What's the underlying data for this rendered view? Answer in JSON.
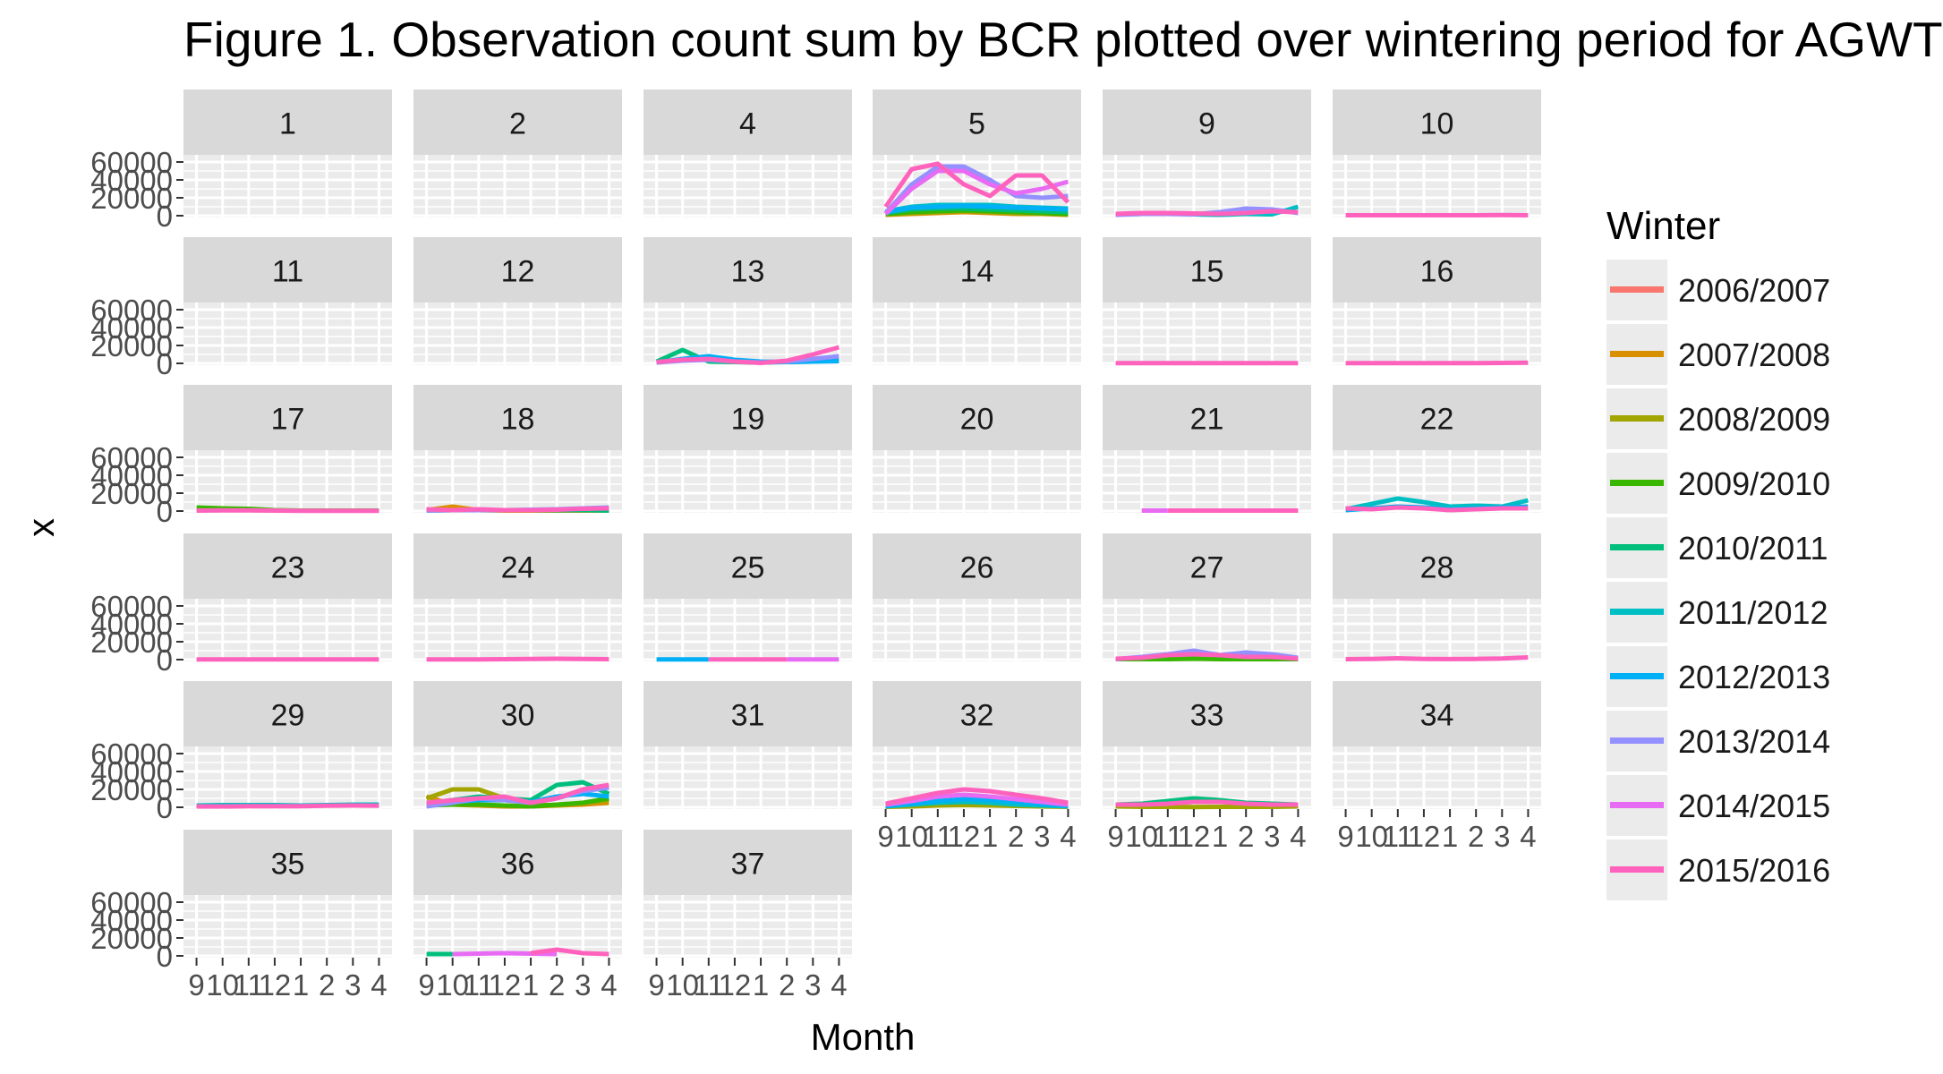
{
  "title": "Figure 1. Observation count sum by BCR plotted over wintering period for AGWT",
  "xlabel": "Month",
  "ylabel": "x",
  "legend": {
    "title": "Winter",
    "items": [
      {
        "label": "2006/2007",
        "color": "#F8766D"
      },
      {
        "label": "2007/2008",
        "color": "#D89000"
      },
      {
        "label": "2008/2009",
        "color": "#A3A500"
      },
      {
        "label": "2009/2010",
        "color": "#39B600"
      },
      {
        "label": "2010/2011",
        "color": "#00BF7D"
      },
      {
        "label": "2011/2012",
        "color": "#00BFC4"
      },
      {
        "label": "2012/2013",
        "color": "#00B0F6"
      },
      {
        "label": "2013/2014",
        "color": "#9590FF"
      },
      {
        "label": "2014/2015",
        "color": "#E76BF3"
      },
      {
        "label": "2015/2016",
        "color": "#FF62BC"
      }
    ]
  },
  "chart_data": {
    "type": "line",
    "facet_by": "BCR",
    "x_categories": [
      "9",
      "10",
      "11",
      "12",
      "1",
      "2",
      "3",
      "4"
    ],
    "y_ticks": [
      0,
      20000,
      40000,
      60000
    ],
    "ylim": [
      -2000,
      68000
    ],
    "legend_position": "right",
    "panels": [
      {
        "label": "1",
        "series": []
      },
      {
        "label": "2",
        "series": []
      },
      {
        "label": "4",
        "series": []
      },
      {
        "label": "5",
        "series": [
          {
            "name": "2007/2008",
            "values": [
              1000,
              2000,
              3000,
              4000,
              3000,
              2000,
              2000,
              1000
            ]
          },
          {
            "name": "2008/2009",
            "values": [
              1500,
              3000,
              4000,
              5000,
              4000,
              3000,
              2500,
              1500
            ]
          },
          {
            "name": "2009/2010",
            "values": [
              2000,
              4000,
              5000,
              6000,
              5000,
              4000,
              3000,
              2000
            ]
          },
          {
            "name": "2010/2011",
            "values": [
              3000,
              7000,
              8000,
              8000,
              7000,
              6000,
              5000,
              4000
            ]
          },
          {
            "name": "2011/2012",
            "values": [
              5000,
              10000,
              12000,
              12000,
              12000,
              10000,
              9000,
              8000
            ]
          },
          {
            "name": "2012/2013",
            "values": [
              4000,
              9000,
              10000,
              11000,
              10000,
              9000,
              8000,
              7000
            ]
          },
          {
            "name": "2013/2014",
            "values": [
              3000,
              35000,
              55000,
              55000,
              40000,
              22000,
              20000,
              22000
            ]
          },
          {
            "name": "2014/2015",
            "values": [
              2000,
              30000,
              50000,
              50000,
              35000,
              25000,
              30000,
              38000
            ]
          },
          {
            "name": "2015/2016",
            "values": [
              10000,
              52000,
              58000,
              35000,
              22000,
              45000,
              45000,
              15000
            ]
          }
        ]
      },
      {
        "label": "9",
        "series": [
          {
            "name": "2011/2012",
            "values": [
              1500,
              2000,
              2500,
              1500,
              1000,
              2000,
              1500,
              10000
            ]
          },
          {
            "name": "2013/2014",
            "values": [
              1000,
              2000,
              2000,
              1500,
              4000,
              8000,
              7000,
              3000
            ]
          },
          {
            "name": "2015/2016",
            "values": [
              2000,
              3000,
              3000,
              2500,
              2000,
              3000,
              5000,
              4000
            ]
          }
        ]
      },
      {
        "label": "10",
        "series": [
          {
            "name": "2015/2016",
            "values": [
              500,
              500,
              500,
              500,
              500,
              500,
              800,
              500
            ]
          }
        ]
      },
      {
        "label": "11",
        "series": []
      },
      {
        "label": "12",
        "series": []
      },
      {
        "label": "13",
        "series": [
          {
            "name": "2010/2011",
            "values": [
              2000,
              15000,
              2000,
              1500,
              1000,
              1500,
              3000,
              4000
            ]
          },
          {
            "name": "2012/2013",
            "values": [
              1000,
              5000,
              8000,
              4000,
              2000,
              1500,
              2000,
              2500
            ]
          },
          {
            "name": "2013/2014",
            "values": [
              1000,
              3000,
              4000,
              2000,
              1000,
              2000,
              5000,
              8000
            ]
          },
          {
            "name": "2015/2016",
            "values": [
              1500,
              4000,
              5000,
              2000,
              500,
              3000,
              10000,
              18000
            ]
          }
        ]
      },
      {
        "label": "14",
        "series": []
      },
      {
        "label": "15",
        "series": [
          {
            "name": "2015/2016",
            "values": [
              300,
              300,
              300,
              300,
              300,
              300,
              300,
              300
            ]
          }
        ]
      },
      {
        "label": "16",
        "series": [
          {
            "name": "2015/2016",
            "values": [
              300,
              300,
              300,
              300,
              300,
              300,
              500,
              800
            ]
          }
        ]
      },
      {
        "label": "17",
        "series": [
          {
            "name": "2009/2010",
            "values": [
              4000,
              3000,
              2500,
              1000,
              500,
              500,
              500,
              500
            ]
          },
          {
            "name": "2015/2016",
            "values": [
              500,
              800,
              800,
              500,
              300,
              300,
              300,
              300
            ]
          }
        ]
      },
      {
        "label": "18",
        "series": [
          {
            "name": "2007/2008",
            "values": [
              1000,
              5000,
              1000,
              500,
              500,
              500,
              500,
              500
            ]
          },
          {
            "name": "2010/2011",
            "values": [
              500,
              1000,
              1000,
              1000,
              1000,
              1000,
              1000,
              500
            ]
          },
          {
            "name": "2013/2014",
            "values": [
              500,
              1000,
              1000,
              1000,
              1500,
              2000,
              3000,
              4000
            ]
          },
          {
            "name": "2015/2016",
            "values": [
              2000,
              1000,
              2000,
              1000,
              1000,
              1500,
              2500,
              3000
            ]
          }
        ]
      },
      {
        "label": "19",
        "series": []
      },
      {
        "label": "20",
        "series": []
      },
      {
        "label": "21",
        "series": [
          {
            "name": "2014/2015",
            "values": [
              null,
              500,
              500,
              null,
              null,
              null,
              null,
              null
            ]
          },
          {
            "name": "2015/2016",
            "values": [
              null,
              null,
              500,
              500,
              500,
              500,
              500,
              500
            ]
          }
        ]
      },
      {
        "label": "22",
        "series": [
          {
            "name": "2011/2012",
            "values": [
              2000,
              8000,
              14000,
              10000,
              5000,
              6000,
              5000,
              12000
            ]
          },
          {
            "name": "2012/2013",
            "values": [
              1000,
              3000,
              5000,
              4000,
              2000,
              3000,
              4000,
              5000
            ]
          },
          {
            "name": "2015/2016",
            "values": [
              3000,
              2000,
              4000,
              3000,
              1000,
              2000,
              3000,
              3000
            ]
          }
        ]
      },
      {
        "label": "23",
        "series": [
          {
            "name": "2015/2016",
            "values": [
              300,
              300,
              300,
              300,
              300,
              300,
              300,
              300
            ]
          }
        ]
      },
      {
        "label": "24",
        "series": [
          {
            "name": "2015/2016",
            "values": [
              300,
              300,
              300,
              500,
              800,
              1000,
              800,
              500
            ]
          }
        ]
      },
      {
        "label": "25",
        "series": [
          {
            "name": "2012/2013",
            "values": [
              300,
              300,
              300,
              null,
              null,
              null,
              null,
              null
            ]
          },
          {
            "name": "2015/2016",
            "values": [
              null,
              null,
              300,
              300,
              300,
              300,
              null,
              null
            ]
          },
          {
            "name": "2014/2015",
            "values": [
              null,
              null,
              null,
              null,
              null,
              300,
              300,
              300
            ]
          }
        ]
      },
      {
        "label": "26",
        "series": []
      },
      {
        "label": "27",
        "series": [
          {
            "name": "2009/2010",
            "values": [
              500,
              500,
              500,
              1000,
              500,
              500,
              500,
              500
            ]
          },
          {
            "name": "2013/2014",
            "values": [
              500,
              3000,
              6000,
              10000,
              5000,
              8000,
              6000,
              2000
            ]
          },
          {
            "name": "2015/2016",
            "values": [
              1000,
              2000,
              5000,
              6000,
              5000,
              3000,
              3000,
              1000
            ]
          }
        ]
      },
      {
        "label": "28",
        "series": [
          {
            "name": "2015/2016",
            "values": [
              500,
              800,
              1500,
              800,
              600,
              800,
              1200,
              2500
            ]
          }
        ]
      },
      {
        "label": "29",
        "series": [
          {
            "name": "2011/2012",
            "values": [
              2000,
              2500,
              2500,
              2500,
              2000,
              2500,
              3000,
              3000
            ]
          },
          {
            "name": "2015/2016",
            "values": [
              1000,
              1000,
              1200,
              1200,
              1200,
              1800,
              2000,
              1800
            ]
          }
        ]
      },
      {
        "label": "30",
        "series": [
          {
            "name": "2007/2008",
            "values": [
              12000,
              3000,
              2000,
              1000,
              1000,
              2000,
              3000,
              5000
            ]
          },
          {
            "name": "2008/2009",
            "values": [
              10000,
              20000,
              20000,
              10000,
              3000,
              2000,
              5000,
              8000
            ]
          },
          {
            "name": "2009/2010",
            "values": [
              2000,
              3000,
              3000,
              2000,
              1000,
              3000,
              5000,
              10000
            ]
          },
          {
            "name": "2010/2011",
            "values": [
              5000,
              8000,
              12000,
              10000,
              8000,
              25000,
              28000,
              15000
            ]
          },
          {
            "name": "2012/2013",
            "values": [
              3000,
              6000,
              8000,
              8000,
              6000,
              12000,
              15000,
              12000
            ]
          },
          {
            "name": "2013/2014",
            "values": [
              1000,
              5000,
              10000,
              8000,
              5000,
              10000,
              18000,
              22000
            ]
          },
          {
            "name": "2015/2016",
            "values": [
              5000,
              8000,
              10000,
              12000,
              5000,
              10000,
              20000,
              25000
            ]
          }
        ]
      },
      {
        "label": "31",
        "series": []
      },
      {
        "label": "32",
        "series": [
          {
            "name": "2008/2009",
            "values": [
              500,
              1000,
              2000,
              2500,
              2000,
              1500,
              1000,
              500
            ]
          },
          {
            "name": "2011/2012",
            "values": [
              1000,
              3000,
              5000,
              6000,
              5000,
              3000,
              2000,
              1000
            ]
          },
          {
            "name": "2012/2013",
            "values": [
              1500,
              4000,
              7000,
              9000,
              8000,
              6000,
              3500,
              2000
            ]
          },
          {
            "name": "2014/2015",
            "values": [
              3000,
              7000,
              12000,
              14000,
              12000,
              9000,
              6000,
              3000
            ]
          },
          {
            "name": "2015/2016",
            "values": [
              4000,
              10000,
              16000,
              20000,
              18000,
              14000,
              10000,
              5000
            ]
          }
        ]
      },
      {
        "label": "33",
        "series": [
          {
            "name": "2008/2009",
            "values": [
              1000,
              500,
              500,
              300,
              500,
              500,
              500,
              1000
            ]
          },
          {
            "name": "2010/2011",
            "values": [
              3000,
              4000,
              7000,
              10000,
              8000,
              5000,
              4000,
              3000
            ]
          },
          {
            "name": "2015/2016",
            "values": [
              3000,
              3000,
              4000,
              6000,
              6000,
              4000,
              3000,
              3000
            ]
          }
        ]
      },
      {
        "label": "34",
        "series": []
      },
      {
        "label": "35",
        "series": []
      },
      {
        "label": "36",
        "series": [
          {
            "name": "2010/2011",
            "values": [
              2000,
              2000,
              null,
              null,
              null,
              null,
              null,
              null
            ]
          },
          {
            "name": "2014/2015",
            "values": [
              null,
              2000,
              2500,
              3000,
              2500,
              2000,
              null,
              null
            ]
          },
          {
            "name": "2015/2016",
            "values": [
              null,
              null,
              null,
              null,
              3000,
              7000,
              3000,
              2000
            ]
          }
        ]
      },
      {
        "label": "37",
        "series": []
      }
    ]
  }
}
